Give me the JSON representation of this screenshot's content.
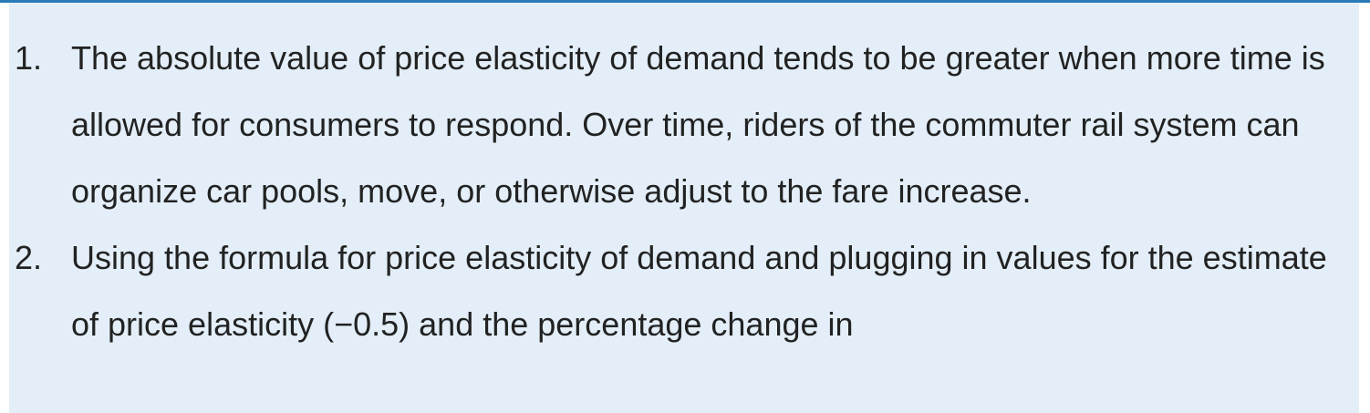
{
  "answers": [
    {
      "number": "1.",
      "text": "The absolute value of price elasticity of demand tends to be greater when more time is allowed for consumers to respond. Over time, riders of the commuter rail system can organize car pools, move, or otherwise adjust to the fare increase."
    },
    {
      "number": "2.",
      "text": "Using the formula for price elasticity of demand and plugging in values for the estimate of price elasticity (−0.5) and the percentage change in"
    }
  ]
}
